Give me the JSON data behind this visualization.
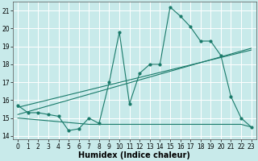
{
  "title": "",
  "xlabel": "Humidex (Indice chaleur)",
  "ylabel": "",
  "background_color": "#c8eaea",
  "grid_color": "#ffffff",
  "line_color": "#1a7a6a",
  "xlim": [
    -0.5,
    23.5
  ],
  "ylim": [
    13.8,
    21.5
  ],
  "yticks": [
    14,
    15,
    16,
    17,
    18,
    19,
    20,
    21
  ],
  "xticks": [
    0,
    1,
    2,
    3,
    4,
    5,
    6,
    7,
    8,
    9,
    10,
    11,
    12,
    13,
    14,
    15,
    16,
    17,
    18,
    19,
    20,
    21,
    22,
    23
  ],
  "series1_x": [
    0,
    1,
    2,
    3,
    4,
    5,
    6,
    7,
    8,
    9,
    10,
    11,
    12,
    13,
    14,
    15,
    16,
    17,
    18,
    19,
    20,
    21,
    22,
    23
  ],
  "series1_y": [
    15.7,
    15.3,
    15.3,
    15.2,
    15.1,
    14.3,
    14.4,
    15.0,
    14.7,
    17.0,
    19.8,
    15.8,
    17.5,
    18.0,
    18.0,
    21.2,
    20.7,
    20.1,
    19.3,
    19.3,
    18.5,
    16.2,
    15.0,
    14.5
  ],
  "series2_x": [
    0,
    23
  ],
  "series2_y": [
    15.2,
    18.9
  ],
  "series3_x": [
    0,
    23
  ],
  "series3_y": [
    15.6,
    18.8
  ],
  "series4_x": [
    0,
    1,
    2,
    3,
    4,
    5,
    6,
    7,
    8,
    9,
    10,
    11,
    12,
    13,
    14,
    15,
    16,
    17,
    18,
    19,
    20,
    21,
    22,
    23
  ],
  "series4_y": [
    15.0,
    14.95,
    14.9,
    14.85,
    14.8,
    14.75,
    14.7,
    14.65,
    14.65,
    14.65,
    14.65,
    14.65,
    14.65,
    14.65,
    14.65,
    14.65,
    14.65,
    14.65,
    14.65,
    14.65,
    14.65,
    14.65,
    14.65,
    14.5
  ],
  "xlabel_fontsize": 7,
  "tick_fontsize": 5.5
}
